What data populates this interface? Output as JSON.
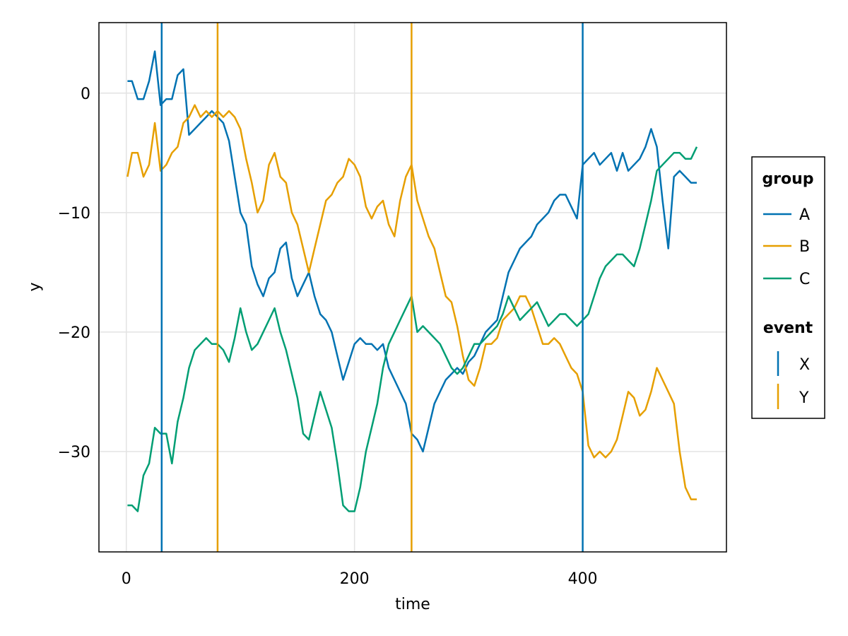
{
  "chart_data": {
    "type": "line",
    "title": "",
    "xlabel": "time",
    "ylabel": "y",
    "xlim": [
      -24,
      526
    ],
    "ylim": [
      -38.4,
      5.9
    ],
    "xticks": [
      0,
      200,
      400
    ],
    "xtick_labels": [
      "0",
      "200",
      "400"
    ],
    "yticks": [
      0,
      -10,
      -20,
      -30
    ],
    "ytick_labels": [
      "0",
      "−10",
      "−20",
      "−30"
    ],
    "grid": true,
    "legend_position": "right",
    "legend": {
      "group_title": "group",
      "event_title": "event",
      "group_entries": [
        "A",
        "B",
        "C"
      ],
      "event_entries": [
        "X",
        "Y"
      ]
    },
    "colors": {
      "A": "#0072B2",
      "B": "#E69F00",
      "C": "#009E73",
      "X": "#0072B2",
      "Y": "#E69F00"
    },
    "series": [
      {
        "name": "A",
        "points": [
          [
            1,
            1
          ],
          [
            5,
            1
          ],
          [
            10,
            -0.5
          ],
          [
            15,
            -0.5
          ],
          [
            20,
            1
          ],
          [
            25,
            3.5
          ],
          [
            30,
            -1
          ],
          [
            35,
            -0.5
          ],
          [
            40,
            -0.5
          ],
          [
            45,
            1.5
          ],
          [
            50,
            2
          ],
          [
            55,
            -3.5
          ],
          [
            60,
            -3
          ],
          [
            65,
            -2.5
          ],
          [
            70,
            -2
          ],
          [
            75,
            -1.5
          ],
          [
            80,
            -2
          ],
          [
            85,
            -2.5
          ],
          [
            90,
            -4
          ],
          [
            95,
            -7
          ],
          [
            100,
            -10
          ],
          [
            105,
            -11
          ],
          [
            110,
            -14.5
          ],
          [
            115,
            -16
          ],
          [
            120,
            -17
          ],
          [
            125,
            -15.5
          ],
          [
            130,
            -15
          ],
          [
            135,
            -13
          ],
          [
            140,
            -12.5
          ],
          [
            145,
            -15.5
          ],
          [
            150,
            -17
          ],
          [
            155,
            -16
          ],
          [
            160,
            -15
          ],
          [
            165,
            -17
          ],
          [
            170,
            -18.5
          ],
          [
            175,
            -19
          ],
          [
            180,
            -20
          ],
          [
            185,
            -22
          ],
          [
            190,
            -24
          ],
          [
            195,
            -22.5
          ],
          [
            200,
            -21
          ],
          [
            205,
            -20.5
          ],
          [
            210,
            -21
          ],
          [
            215,
            -21
          ],
          [
            220,
            -21.5
          ],
          [
            225,
            -21
          ],
          [
            230,
            -23
          ],
          [
            235,
            -24
          ],
          [
            240,
            -25
          ],
          [
            245,
            -26
          ],
          [
            250,
            -28.5
          ],
          [
            255,
            -29
          ],
          [
            260,
            -30
          ],
          [
            265,
            -28
          ],
          [
            270,
            -26
          ],
          [
            275,
            -25
          ],
          [
            280,
            -24
          ],
          [
            285,
            -23.5
          ],
          [
            290,
            -23
          ],
          [
            295,
            -23.5
          ],
          [
            300,
            -22.5
          ],
          [
            305,
            -22
          ],
          [
            310,
            -21
          ],
          [
            315,
            -20
          ],
          [
            320,
            -19.5
          ],
          [
            325,
            -19
          ],
          [
            330,
            -17
          ],
          [
            335,
            -15
          ],
          [
            340,
            -14
          ],
          [
            345,
            -13
          ],
          [
            350,
            -12.5
          ],
          [
            355,
            -12
          ],
          [
            360,
            -11
          ],
          [
            365,
            -10.5
          ],
          [
            370,
            -10
          ],
          [
            375,
            -9
          ],
          [
            380,
            -8.5
          ],
          [
            385,
            -8.5
          ],
          [
            390,
            -9.5
          ],
          [
            395,
            -10.5
          ],
          [
            400,
            -6
          ],
          [
            405,
            -5.5
          ],
          [
            410,
            -5
          ],
          [
            415,
            -6
          ],
          [
            420,
            -5.5
          ],
          [
            425,
            -5
          ],
          [
            430,
            -6.5
          ],
          [
            435,
            -5
          ],
          [
            440,
            -6.5
          ],
          [
            445,
            -6
          ],
          [
            450,
            -5.5
          ],
          [
            455,
            -4.5
          ],
          [
            460,
            -3
          ],
          [
            465,
            -4.5
          ],
          [
            470,
            -9
          ],
          [
            475,
            -13
          ],
          [
            480,
            -7
          ],
          [
            485,
            -6.5
          ],
          [
            490,
            -7
          ],
          [
            495,
            -7.5
          ],
          [
            500,
            -7.5
          ]
        ]
      },
      {
        "name": "B",
        "points": [
          [
            1,
            -7
          ],
          [
            5,
            -5
          ],
          [
            10,
            -5
          ],
          [
            15,
            -7
          ],
          [
            20,
            -6
          ],
          [
            25,
            -2.5
          ],
          [
            30,
            -6.5
          ],
          [
            35,
            -6
          ],
          [
            40,
            -5
          ],
          [
            45,
            -4.5
          ],
          [
            50,
            -2.5
          ],
          [
            55,
            -2
          ],
          [
            60,
            -1
          ],
          [
            65,
            -2
          ],
          [
            70,
            -1.5
          ],
          [
            75,
            -2
          ],
          [
            80,
            -1.5
          ],
          [
            85,
            -2
          ],
          [
            90,
            -1.5
          ],
          [
            95,
            -2
          ],
          [
            100,
            -3
          ],
          [
            105,
            -5.5
          ],
          [
            110,
            -7.5
          ],
          [
            115,
            -10
          ],
          [
            120,
            -9
          ],
          [
            125,
            -6
          ],
          [
            130,
            -5
          ],
          [
            135,
            -7
          ],
          [
            140,
            -7.5
          ],
          [
            145,
            -10
          ],
          [
            150,
            -11
          ],
          [
            155,
            -13
          ],
          [
            160,
            -15
          ],
          [
            165,
            -13
          ],
          [
            170,
            -11
          ],
          [
            175,
            -9
          ],
          [
            180,
            -8.5
          ],
          [
            185,
            -7.5
          ],
          [
            190,
            -7
          ],
          [
            195,
            -5.5
          ],
          [
            200,
            -6
          ],
          [
            205,
            -7
          ],
          [
            210,
            -9.5
          ],
          [
            215,
            -10.5
          ],
          [
            220,
            -9.5
          ],
          [
            225,
            -9
          ],
          [
            230,
            -11
          ],
          [
            235,
            -12
          ],
          [
            240,
            -9
          ],
          [
            245,
            -7
          ],
          [
            250,
            -6
          ],
          [
            255,
            -9
          ],
          [
            260,
            -10.5
          ],
          [
            265,
            -12
          ],
          [
            270,
            -13
          ],
          [
            275,
            -15
          ],
          [
            280,
            -17
          ],
          [
            285,
            -17.5
          ],
          [
            290,
            -19.5
          ],
          [
            295,
            -22
          ],
          [
            300,
            -24
          ],
          [
            305,
            -24.5
          ],
          [
            310,
            -23
          ],
          [
            315,
            -21
          ],
          [
            320,
            -21
          ],
          [
            325,
            -20.5
          ],
          [
            330,
            -19
          ],
          [
            335,
            -18.5
          ],
          [
            340,
            -18
          ],
          [
            345,
            -17
          ],
          [
            350,
            -17
          ],
          [
            355,
            -18
          ],
          [
            360,
            -19.5
          ],
          [
            365,
            -21
          ],
          [
            370,
            -21
          ],
          [
            375,
            -20.5
          ],
          [
            380,
            -21
          ],
          [
            385,
            -22
          ],
          [
            390,
            -23
          ],
          [
            395,
            -23.5
          ],
          [
            400,
            -25
          ],
          [
            405,
            -29.5
          ],
          [
            410,
            -30.5
          ],
          [
            415,
            -30
          ],
          [
            420,
            -30.5
          ],
          [
            425,
            -30
          ],
          [
            430,
            -29
          ],
          [
            435,
            -27
          ],
          [
            440,
            -25
          ],
          [
            445,
            -25.5
          ],
          [
            450,
            -27
          ],
          [
            455,
            -26.5
          ],
          [
            460,
            -25
          ],
          [
            465,
            -23
          ],
          [
            470,
            -24
          ],
          [
            475,
            -25
          ],
          [
            480,
            -26
          ],
          [
            485,
            -30
          ],
          [
            490,
            -33
          ],
          [
            495,
            -34
          ],
          [
            500,
            -34
          ]
        ]
      },
      {
        "name": "C",
        "points": [
          [
            1,
            -34.5
          ],
          [
            5,
            -34.5
          ],
          [
            10,
            -35
          ],
          [
            15,
            -32
          ],
          [
            20,
            -31
          ],
          [
            25,
            -28
          ],
          [
            30,
            -28.5
          ],
          [
            35,
            -28.5
          ],
          [
            40,
            -31
          ],
          [
            45,
            -27.5
          ],
          [
            50,
            -25.5
          ],
          [
            55,
            -23
          ],
          [
            60,
            -21.5
          ],
          [
            65,
            -21
          ],
          [
            70,
            -20.5
          ],
          [
            75,
            -21
          ],
          [
            80,
            -21
          ],
          [
            85,
            -21.5
          ],
          [
            90,
            -22.5
          ],
          [
            95,
            -20.5
          ],
          [
            100,
            -18
          ],
          [
            105,
            -20
          ],
          [
            110,
            -21.5
          ],
          [
            115,
            -21
          ],
          [
            120,
            -20
          ],
          [
            125,
            -19
          ],
          [
            130,
            -18
          ],
          [
            135,
            -20
          ],
          [
            140,
            -21.5
          ],
          [
            145,
            -23.5
          ],
          [
            150,
            -25.5
          ],
          [
            155,
            -28.5
          ],
          [
            160,
            -29
          ],
          [
            165,
            -27
          ],
          [
            170,
            -25
          ],
          [
            175,
            -26.5
          ],
          [
            180,
            -28
          ],
          [
            185,
            -31
          ],
          [
            190,
            -34.5
          ],
          [
            195,
            -35
          ],
          [
            200,
            -35
          ],
          [
            205,
            -33
          ],
          [
            210,
            -30
          ],
          [
            215,
            -28
          ],
          [
            220,
            -26
          ],
          [
            225,
            -23
          ],
          [
            230,
            -21
          ],
          [
            235,
            -20
          ],
          [
            240,
            -19
          ],
          [
            245,
            -18
          ],
          [
            250,
            -17
          ],
          [
            255,
            -20
          ],
          [
            260,
            -19.5
          ],
          [
            265,
            -20
          ],
          [
            270,
            -20.5
          ],
          [
            275,
            -21
          ],
          [
            280,
            -22
          ],
          [
            285,
            -23
          ],
          [
            290,
            -23.5
          ],
          [
            295,
            -23
          ],
          [
            300,
            -22
          ],
          [
            305,
            -21
          ],
          [
            310,
            -21
          ],
          [
            315,
            -20.5
          ],
          [
            320,
            -20
          ],
          [
            325,
            -19.5
          ],
          [
            330,
            -18.5
          ],
          [
            335,
            -17
          ],
          [
            340,
            -18
          ],
          [
            345,
            -19
          ],
          [
            350,
            -18.5
          ],
          [
            355,
            -18
          ],
          [
            360,
            -17.5
          ],
          [
            365,
            -18.5
          ],
          [
            370,
            -19.5
          ],
          [
            375,
            -19
          ],
          [
            380,
            -18.5
          ],
          [
            385,
            -18.5
          ],
          [
            390,
            -19
          ],
          [
            395,
            -19.5
          ],
          [
            400,
            -19
          ],
          [
            405,
            -18.5
          ],
          [
            410,
            -17
          ],
          [
            415,
            -15.5
          ],
          [
            420,
            -14.5
          ],
          [
            425,
            -14
          ],
          [
            430,
            -13.5
          ],
          [
            435,
            -13.5
          ],
          [
            440,
            -14
          ],
          [
            445,
            -14.5
          ],
          [
            450,
            -13
          ],
          [
            455,
            -11
          ],
          [
            460,
            -9
          ],
          [
            465,
            -6.5
          ],
          [
            470,
            -6
          ],
          [
            475,
            -5.5
          ],
          [
            480,
            -5
          ],
          [
            485,
            -5
          ],
          [
            490,
            -5.5
          ],
          [
            495,
            -5.5
          ],
          [
            500,
            -4.5
          ]
        ]
      }
    ],
    "events": [
      {
        "name": "X",
        "x": 31
      },
      {
        "name": "Y",
        "x": 80
      },
      {
        "name": "Y",
        "x": 250
      },
      {
        "name": "X",
        "x": 400
      }
    ]
  }
}
